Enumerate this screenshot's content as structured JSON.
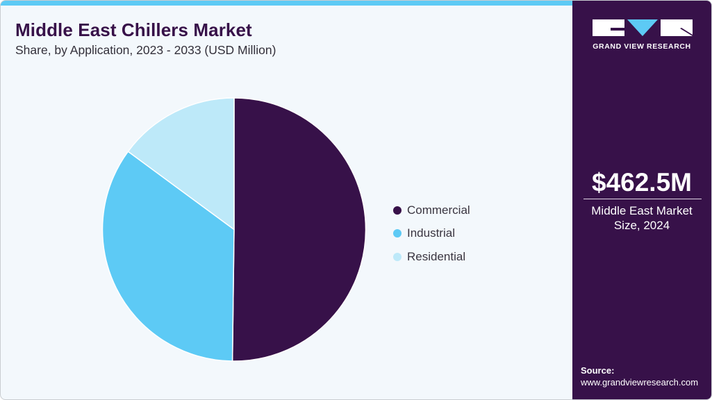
{
  "header": {
    "title": "Middle East Chillers Market",
    "subtitle": "Share, by Application, 2023 - 2033 (USD Million)"
  },
  "colors": {
    "accent_bar": "#5dcaf5",
    "panel": "#371149",
    "background": "#f3f8fc"
  },
  "chart_data": {
    "type": "pie",
    "title": "Middle East Chillers Market",
    "subtitle": "Share, by Application, 2023 - 2033 (USD Million)",
    "categories": [
      "Commercial",
      "Industrial",
      "Residential"
    ],
    "values": [
      50.2,
      34.9,
      14.9
    ],
    "unit": "%",
    "colors": [
      "#371149",
      "#5dcaf5",
      "#bde9f9"
    ],
    "start_angle": "12 o'clock",
    "direction": "clockwise",
    "legend_position": "right"
  },
  "legend": {
    "items": [
      {
        "label": "Commercial",
        "color": "#371149"
      },
      {
        "label": "Industrial",
        "color": "#5dcaf5"
      },
      {
        "label": "Residential",
        "color": "#bde9f9"
      }
    ]
  },
  "side_panel": {
    "logo_text": "GRAND VIEW RESEARCH",
    "market_value": "$462.5M",
    "caption_line1": "Middle East Market",
    "caption_line2": "Size, 2024",
    "source_label": "Source:",
    "source_url": "www.grandviewresearch.com"
  }
}
